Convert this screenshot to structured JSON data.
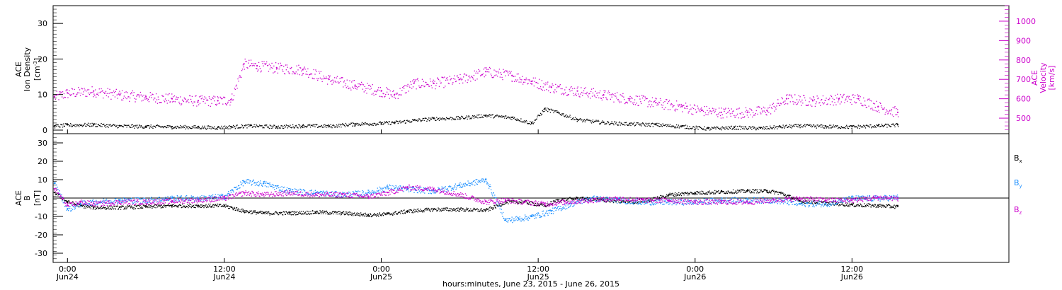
{
  "xlabel": "hours:minutes, June 23, 2015 - June 26, 2015",
  "x_ticks": [
    {
      "time": "0:00",
      "day": "Jun24",
      "hours": 24
    },
    {
      "time": "12:00",
      "day": "Jun24",
      "hours": 36
    },
    {
      "time": "0:00",
      "day": "Jun25",
      "hours": 48
    },
    {
      "time": "12:00",
      "day": "Jun25",
      "hours": 60
    },
    {
      "time": "0:00",
      "day": "Jun26",
      "hours": 72
    },
    {
      "time": "12:00",
      "day": "Jun26",
      "hours": 84
    }
  ],
  "chart_data": [
    {
      "type": "scatter",
      "panel": "top",
      "xrange": [
        22.9,
        96.0
      ],
      "ylabel_left": {
        "line1": "ACE",
        "line2": "Ion Density",
        "line3": "[cm"
      },
      "ylabel_left_sup": "-3",
      "ylabel_left_close": "]",
      "ylim_left": [
        -1,
        35
      ],
      "yticks_left": [
        "0",
        "10",
        "20",
        "30"
      ],
      "ylabel_right": {
        "line1": "ACE",
        "line2": "Velocity",
        "line3": "[km/s]"
      },
      "ylim_right": [
        420,
        1080
      ],
      "yticks_right": [
        "500",
        "600",
        "700",
        "800",
        "900",
        "1000"
      ],
      "colors": {
        "density": "#000000",
        "velocity": "#cc00cc"
      },
      "series": [
        {
          "name": "density",
          "axis": "left",
          "x": [
            23.0,
            24.0,
            26.0,
            28.0,
            30.0,
            32.0,
            34.0,
            35.5,
            36.5,
            38.0,
            40.0,
            42.0,
            44.0,
            46.0,
            48.0,
            49.0,
            50.5,
            52.0,
            54.0,
            56.0,
            58.0,
            59.5,
            60.5,
            61.5,
            63.0,
            65.0,
            67.0,
            69.0,
            71.0,
            73.0,
            75.0,
            77.0,
            78.5,
            80.0,
            82.0,
            84.0,
            86.0,
            87.5
          ],
          "y": [
            1.2,
            1.5,
            1.6,
            1.2,
            1.1,
            1.0,
            0.9,
            0.8,
            1.0,
            1.3,
            1.0,
            1.3,
            1.2,
            1.8,
            2.0,
            2.2,
            2.8,
            3.3,
            3.5,
            4.2,
            3.6,
            2.0,
            6.0,
            5.0,
            3.0,
            2.2,
            1.8,
            1.6,
            1.1,
            0.5,
            0.8,
            0.6,
            1.0,
            1.3,
            1.1,
            1.0,
            1.3,
            1.5
          ]
        },
        {
          "name": "velocity",
          "axis": "right",
          "x": [
            23.0,
            24.0,
            26.0,
            28.0,
            30.0,
            32.0,
            34.0,
            35.5,
            36.5,
            37.5,
            38.5,
            40.0,
            42.0,
            44.0,
            46.0,
            48.0,
            49.0,
            50.5,
            52.0,
            54.0,
            56.0,
            58.0,
            59.5,
            61.0,
            63.0,
            65.0,
            67.0,
            69.0,
            71.0,
            72.5,
            74.0,
            76.0,
            77.5,
            79.0,
            81.0,
            83.0,
            84.5,
            86.0,
            87.5
          ],
          "y": [
            610,
            630,
            640,
            620,
            610,
            600,
            590,
            590,
            595,
            780,
            770,
            760,
            750,
            700,
            670,
            640,
            620,
            680,
            680,
            700,
            740,
            720,
            690,
            660,
            640,
            620,
            600,
            580,
            560,
            540,
            530,
            530,
            540,
            600,
            590,
            600,
            600,
            560,
            530
          ]
        }
      ]
    },
    {
      "type": "scatter",
      "panel": "bottom",
      "xrange": [
        22.9,
        96.0
      ],
      "ylabel_left": {
        "line1": "ACE",
        "line2": "B",
        "line3": "[nT]"
      },
      "ylim_left": [
        -35,
        35
      ],
      "yticks_left": [
        "-30",
        "-20",
        "-10",
        "0",
        "10",
        "20",
        "30"
      ],
      "zero_line": 0,
      "colors": {
        "Bx": "#000000",
        "By": "#1e90ff",
        "Bz": "#cc00cc"
      },
      "legend": [
        {
          "label": "B",
          "sub": "x",
          "color": "#000000"
        },
        {
          "label": "B",
          "sub": "y",
          "color": "#1e90ff"
        },
        {
          "label": "B",
          "sub": "z",
          "color": "#cc00cc"
        }
      ],
      "series": [
        {
          "name": "Bx",
          "x": [
            23.0,
            24.0,
            25.0,
            26.0,
            28.0,
            30.0,
            32.0,
            34.0,
            36.0,
            37.5,
            39.0,
            41.0,
            43.0,
            45.0,
            47.0,
            48.5,
            50.0,
            52.0,
            54.0,
            56.0,
            57.5,
            59.0,
            60.5,
            61.5,
            63.0,
            65.0,
            67.0,
            68.5,
            70.0,
            72.0,
            74.0,
            76.0,
            77.5,
            78.5,
            80.0,
            82.0,
            84.0,
            86.0,
            87.5
          ],
          "y": [
            3.0,
            -2.0,
            -4.0,
            -5.0,
            -5.0,
            -4.5,
            -4.0,
            -4.0,
            -4.0,
            -7.0,
            -8.0,
            -8.0,
            -7.5,
            -8.0,
            -9.0,
            -8.5,
            -7.0,
            -6.0,
            -6.0,
            -6.5,
            -2.0,
            -2.0,
            -4.0,
            -1.0,
            0.0,
            -1.0,
            -2.0,
            -1.0,
            2.0,
            3.0,
            3.5,
            4.0,
            4.0,
            3.0,
            -1.5,
            -2.5,
            -3.5,
            -4.0,
            -4.5
          ]
        },
        {
          "name": "By",
          "x": [
            23.0,
            24.0,
            25.0,
            26.0,
            28.0,
            30.0,
            32.0,
            34.0,
            36.0,
            37.5,
            39.0,
            41.0,
            43.0,
            45.0,
            47.0,
            48.5,
            50.0,
            52.0,
            54.0,
            56.0,
            57.5,
            58.5,
            59.5,
            61.0,
            62.5,
            64.0,
            66.0,
            68.0,
            70.0,
            72.0,
            74.0,
            76.0,
            78.0,
            80.0,
            82.0,
            84.0,
            86.0,
            87.5
          ],
          "y": [
            8.0,
            -6.0,
            -3.0,
            -2.0,
            -1.0,
            -1.0,
            0.0,
            0.0,
            1.0,
            9.0,
            8.0,
            4.0,
            3.0,
            2.0,
            3.0,
            6.0,
            5.0,
            4.0,
            7.0,
            10.0,
            -12.0,
            -11.0,
            -10.0,
            -7.0,
            -3.0,
            0.0,
            -1.0,
            -2.0,
            -2.0,
            -2.0,
            -1.0,
            -1.0,
            -1.0,
            -3.0,
            -3.0,
            0.0,
            0.0,
            0.5
          ]
        },
        {
          "name": "Bz",
          "x": [
            23.0,
            24.0,
            25.0,
            26.0,
            28.0,
            30.0,
            32.0,
            34.0,
            36.0,
            37.5,
            39.0,
            41.0,
            43.0,
            45.0,
            47.0,
            48.5,
            50.0,
            52.0,
            54.0,
            56.0,
            57.5,
            59.0,
            60.5,
            62.0,
            64.0,
            66.0,
            68.0,
            70.0,
            72.0,
            74.0,
            76.0,
            78.0,
            80.0,
            82.0,
            84.0,
            86.0,
            87.5
          ],
          "y": [
            5.0,
            -4.0,
            -2.0,
            -3.0,
            -2.0,
            -2.0,
            -1.5,
            -1.0,
            0.0,
            3.0,
            2.0,
            3.0,
            2.0,
            2.0,
            1.0,
            3.0,
            6.0,
            5.0,
            2.0,
            -2.0,
            -1.0,
            -2.0,
            -3.0,
            -2.0,
            -1.0,
            0.0,
            -1.0,
            -1.0,
            -2.0,
            -2.0,
            -2.0,
            -1.0,
            0.0,
            -1.0,
            -1.0,
            0.5,
            0.0
          ]
        }
      ]
    }
  ]
}
